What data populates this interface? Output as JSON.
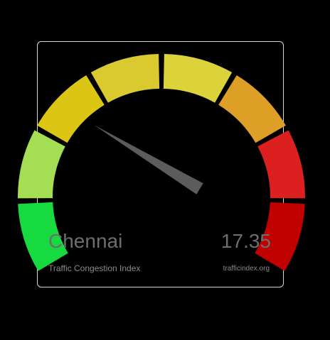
{
  "widget": {
    "city": "Chennai",
    "index_value": "17.35",
    "index_numeric": 17.35,
    "label": "Traffic Congestion Index",
    "source": "trafficindex.org"
  },
  "gauge": {
    "min": 0,
    "max": 100,
    "segment_colors": [
      "#17d940",
      "#a4de52",
      "#dcc515",
      "#dbc930",
      "#dcd23a",
      "#de9f26",
      "#dc1f1f",
      "#c10000"
    ],
    "needle_color": "#5c5c5c"
  }
}
